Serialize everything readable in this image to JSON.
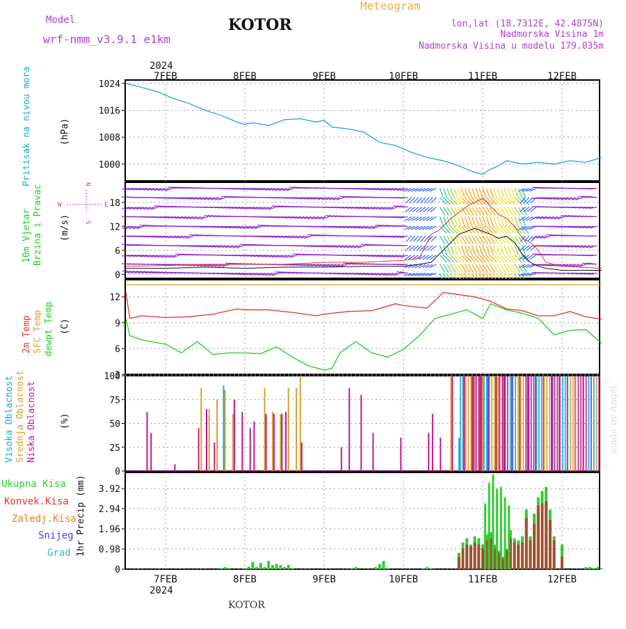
{
  "header": {
    "model_label": "Model",
    "model_name": "wrf-nmm_v3.9.1 e1km",
    "title": "KOTOR",
    "product": "Meteogram",
    "lonlat": "lon,lat (18.7312E, 42.4875N)",
    "elev": "Nadmorska Visina 1m",
    "model_elev": "Nadmorska Visina u modelu 179.035m"
  },
  "footer": {
    "station": "KOTOR",
    "year": "2024",
    "credit": "made by Angel"
  },
  "colors": {
    "pressure": "#1aa3e8",
    "wind_speed": "#111111",
    "wind_gust": "#e83030",
    "temp": "#e83030",
    "sfc_temp": "#e0a020",
    "dewpt": "#22cc22",
    "high_cloud": "#1aa3e8",
    "mid_cloud": "#d4a030",
    "low_cloud": "#c0188a",
    "precip_total": "#33cc33",
    "precip_conv": "#e83030",
    "precip_frz": "#f08020",
    "snow": "#4444dd",
    "hail": "#33bbbb",
    "purple": "#b040d0",
    "grid": "#999999"
  },
  "chart_data": [
    {
      "type": "line",
      "title": "Pritisak na nivou mora",
      "ylabel": "(hPa)",
      "ylim": [
        995,
        1025
      ],
      "yticks": [
        "1024",
        "1016",
        "1008",
        "1000"
      ],
      "x_dates": [
        "7FEB",
        "8FEB",
        "9FEB",
        "10FEB",
        "11FEB",
        "12FEB"
      ],
      "grid": true,
      "series": [
        {
          "name": "Pritisak na nivou mora",
          "x": [
            -0.5,
            -0.3,
            -0.1,
            0.1,
            0.3,
            0.5,
            0.7,
            0.9,
            1.0,
            1.1,
            1.3,
            1.5,
            1.7,
            1.9,
            2.0,
            2.1,
            2.3,
            2.5,
            2.7,
            2.9,
            3.1,
            3.3,
            3.5,
            3.7,
            3.9,
            4.0,
            4.1,
            4.2,
            4.3,
            4.5,
            4.7,
            4.9,
            5.1,
            5.3,
            5.5
          ],
          "values": [
            1024,
            1022.8,
            1021.5,
            1019.5,
            1018,
            1016,
            1014.5,
            1012.5,
            1011.8,
            1012.3,
            1011.5,
            1013.2,
            1013.5,
            1012.5,
            1013,
            1011,
            1010.5,
            1009.5,
            1006.5,
            1005.5,
            1003.5,
            1002,
            1001,
            999.5,
            997.5,
            997,
            998.5,
            999.5,
            1001,
            1000,
            1000.5,
            1000,
            1001,
            1000.5,
            1002
          ]
        }
      ]
    },
    {
      "type": "line",
      "title": "10m Vjetar Brzina i Pravac",
      "ylabel": "(m/s)",
      "ylim": [
        -1,
        23
      ],
      "yticks": [
        "18",
        "12",
        "6",
        "0"
      ],
      "direction_key": {
        "n": "N",
        "s": "S",
        "e": "E",
        "w": "W"
      },
      "grid": true,
      "series": [
        {
          "name": "speed",
          "x": [
            -0.5,
            0,
            0.5,
            1,
            1.5,
            2,
            2.5,
            3,
            3.2,
            3.35,
            3.5,
            3.7,
            3.9,
            4.1,
            4.2,
            4.3,
            4.4,
            4.5,
            4.6,
            4.7,
            4.8,
            5,
            5.5
          ],
          "values": [
            1.5,
            1.5,
            1.8,
            1.5,
            1.8,
            1.8,
            2,
            2,
            2.5,
            3,
            6,
            10,
            11.5,
            10,
            9,
            9.5,
            8,
            5,
            3,
            2,
            1.5,
            1,
            1
          ]
        },
        {
          "name": "gust",
          "x": [
            -0.5,
            0,
            0.5,
            1,
            1.5,
            2,
            2.5,
            3,
            3.2,
            3.35,
            3.45,
            3.6,
            3.8,
            4,
            4.2,
            4.3,
            4.4,
            4.5,
            4.6,
            4.7,
            4.8,
            5,
            5.5
          ],
          "values": [
            2,
            2.2,
            2.5,
            2.5,
            2.5,
            3,
            3,
            3.5,
            4,
            10,
            11,
            14,
            17,
            19,
            15,
            14,
            12,
            9,
            8,
            6,
            3,
            2,
            1.5
          ]
        }
      ]
    },
    {
      "type": "line",
      "title": "2m Temp / SFC Temp / dewpt Temp",
      "ylabel": "(C)",
      "ylim": [
        3,
        14
      ],
      "yticks": [
        "12",
        "9",
        "6",
        "3"
      ],
      "grid": true,
      "series": [
        {
          "name": "2m Temp",
          "x": [
            -0.5,
            -0.45,
            -0.3,
            0,
            0.3,
            0.6,
            0.9,
            1.0,
            1.3,
            1.6,
            1.9,
            2.0,
            2.3,
            2.6,
            2.9,
            3.0,
            3.2,
            3.3,
            3.5,
            3.6,
            3.9,
            4.1,
            4.3,
            4.5,
            4.7,
            4.9,
            5.1,
            5.3,
            5.5
          ],
          "values": [
            12.5,
            9.5,
            9.8,
            9.6,
            9.7,
            10,
            10.6,
            10.5,
            10.5,
            10.2,
            9.8,
            10,
            10.3,
            10.4,
            11.2,
            11,
            10.8,
            10.7,
            12.5,
            12.4,
            12.0,
            11.5,
            10.6,
            10.4,
            9.8,
            9.8,
            10.3,
            9.7,
            9.4
          ]
        },
        {
          "name": "SFC Temp",
          "x": [
            -0.5,
            5.5
          ],
          "values": [
            13.4,
            13.4
          ]
        },
        {
          "name": "dewpt Temp",
          "x": [
            -0.5,
            -0.45,
            -0.3,
            0,
            0.2,
            0.4,
            0.6,
            0.8,
            1.0,
            1.2,
            1.4,
            1.6,
            1.8,
            2.0,
            2.1,
            2.2,
            2.4,
            2.6,
            2.8,
            3.0,
            3.2,
            3.4,
            3.6,
            3.8,
            4.0,
            4.1,
            4.3,
            4.5,
            4.7,
            4.9,
            5.1,
            5.3,
            5.5
          ],
          "values": [
            9.5,
            7.5,
            7,
            6.5,
            5.5,
            6.8,
            5.3,
            5.5,
            5.5,
            5.4,
            6.2,
            5,
            4,
            3.5,
            3.7,
            5.5,
            6.8,
            5.5,
            5,
            5.9,
            7.5,
            9.5,
            10,
            10.5,
            9.5,
            11.2,
            10.5,
            10.1,
            9.5,
            7.6,
            8.1,
            8.2,
            6.6
          ]
        }
      ]
    },
    {
      "type": "bar",
      "title": "Visoka / Srednja / Niska Oblacnost",
      "ylabel": "(%)",
      "ylim": [
        0,
        100
      ],
      "yticks": [
        "100",
        "75",
        "50",
        "25",
        "0"
      ],
      "grid": true,
      "series": [
        {
          "name": "Visoka Oblacnost",
          "x": [
            0.75,
            3.72,
            4.1,
            4.3,
            4.6,
            4.9
          ],
          "values": [
            90,
            35,
            100,
            100,
            100,
            100
          ]
        },
        {
          "name": "Srednja Oblacnost",
          "x": [
            0.45,
            0.55,
            0.65,
            0.75,
            0.85,
            1.25,
            1.35,
            1.45,
            1.55,
            1.65,
            1.7,
            3.6,
            3.75,
            3.9,
            4.0,
            4.2
          ],
          "values": [
            87,
            65,
            75,
            85,
            60,
            87,
            62,
            60,
            87,
            87,
            100,
            100,
            100,
            100,
            100,
            100
          ]
        },
        {
          "name": "Niska Oblacnost",
          "x": [
            -0.25,
            -0.2,
            0.1,
            0.4,
            0.5,
            0.6,
            0.85,
            0.95,
            1.05,
            1.1,
            1.25,
            1.35,
            1.45,
            1.5,
            1.7,
            2.2,
            2.3,
            2.45,
            2.6,
            2.95,
            3.3,
            3.35,
            3.45,
            3.6,
            3.75,
            3.85,
            3.95,
            4.05,
            4.15,
            4.25,
            4.35,
            4.45,
            4.55,
            4.65,
            4.75,
            4.85,
            4.95,
            5.05,
            5.15,
            5.25,
            5.35,
            5.45
          ],
          "values": [
            62,
            40,
            7,
            45,
            65,
            30,
            75,
            62,
            45,
            52,
            60,
            60,
            60,
            62,
            30,
            25,
            87,
            80,
            40,
            35,
            40,
            60,
            35,
            100,
            100,
            100,
            100,
            100,
            100,
            100,
            100,
            100,
            100,
            100,
            100,
            100,
            100,
            100,
            100,
            100,
            100,
            100
          ]
        }
      ]
    },
    {
      "type": "bar",
      "title": "1hr Precip",
      "ylabel": "1hr Precip (mm)",
      "ylim": [
        0,
        4.7
      ],
      "yticks": [
        "3.92",
        "2.94",
        "1.96",
        "0.98",
        "0"
      ],
      "legend": [
        "Ukupna Kisa",
        "Konvek.Kisa",
        "Zaledj.Kisa",
        "Snijeg",
        "Grad"
      ],
      "grid": true,
      "series": [
        {
          "name": "Ukupna Kisa",
          "x": [
            0.7,
            0.75,
            0.8,
            1.0,
            1.05,
            1.1,
            1.15,
            1.2,
            1.25,
            1.3,
            1.35,
            1.4,
            1.45,
            1.5,
            1.55,
            1.6,
            2.35,
            2.4,
            2.65,
            2.7,
            2.75,
            2.8,
            3.25,
            3.3,
            3.35,
            3.7,
            3.75,
            3.8,
            3.85,
            3.9,
            3.95,
            4.0,
            4.05,
            4.1,
            4.15,
            4.2,
            4.25,
            4.3,
            4.35,
            4.4,
            4.45,
            4.5,
            4.55,
            4.6,
            4.65,
            4.7,
            4.75,
            4.8,
            4.85,
            4.9,
            5.0,
            5.3,
            5.35,
            5.4,
            5.45,
            5.5
          ],
          "values": [
            0.05,
            0.1,
            0.05,
            0.05,
            0.12,
            0.35,
            0.1,
            0.3,
            0.1,
            0.4,
            0.2,
            0.25,
            0.2,
            0.1,
            0.2,
            0.05,
            0.05,
            0.1,
            0.1,
            0.25,
            0.4,
            0.05,
            0.05,
            0.1,
            0.05,
            0.8,
            1.3,
            1.5,
            1.2,
            1.6,
            1.5,
            1.2,
            1.7,
            1.8,
            1.2,
            0.9,
            0.6,
            1.0,
            1.9,
            1.5,
            1.4,
            1.6,
            2.9,
            1.6,
            2.7,
            3.5,
            3.8,
            4.0,
            2.9,
            1.6,
            1.2,
            0.1,
            0.1,
            0.05,
            0.1,
            0.05
          ],
          "conv": [
            0,
            0,
            0,
            0,
            0,
            0,
            0,
            0,
            0,
            0,
            0,
            0,
            0,
            0,
            0,
            0,
            0,
            0,
            0,
            0,
            0,
            0,
            0,
            0,
            0,
            0.6,
            1.0,
            1.2,
            1.1,
            1.3,
            1.2,
            1.0,
            1.4,
            1.5,
            1.0,
            0.8,
            0.5,
            0.9,
            1.5,
            1.3,
            1.2,
            1.3,
            2.5,
            1.4,
            2.2,
            3.1,
            3.2,
            3.3,
            2.4,
            1.4,
            0.6,
            0,
            0,
            0,
            0,
            0
          ]
        },
        {
          "name": "Ukupna Kisa (peak)",
          "x": [
            4.0,
            4.05,
            4.1,
            4.15,
            4.2,
            4.25,
            4.3
          ],
          "values": [
            3.2,
            4.2,
            4.6,
            3.9,
            4.0,
            3.5,
            3.1
          ]
        }
      ]
    }
  ]
}
